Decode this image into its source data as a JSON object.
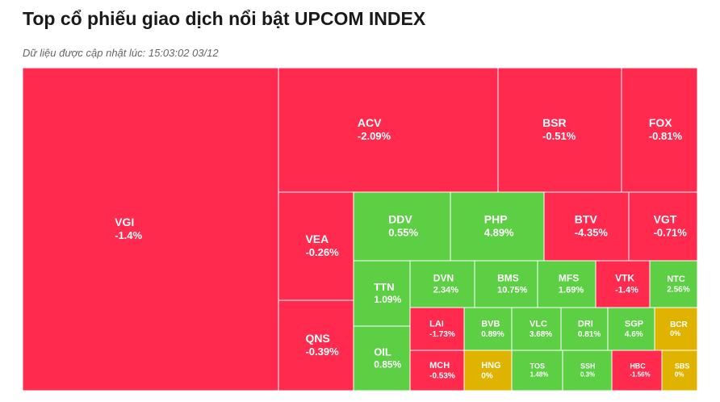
{
  "header": {
    "title": "Top cổ phiếu giao dịch nổi bật UPCOM INDEX",
    "subtitle": "Dữ liệu được cập nhật lúc: 15:03:02 03/12"
  },
  "colors": {
    "down": "#ff2a4e",
    "up": "#5ccf45",
    "flat": "#e0b300",
    "border": "#ffffff"
  },
  "chart_data": {
    "type": "treemap",
    "title": "Top cổ phiếu giao dịch nổi bật UPCOM INDEX",
    "items": [
      {
        "ticker": "VGI",
        "change": "-1.4%",
        "value": -1.4,
        "status": "down"
      },
      {
        "ticker": "ACV",
        "change": "-2.09%",
        "value": -2.09,
        "status": "down"
      },
      {
        "ticker": "BSR",
        "change": "-0.51%",
        "value": -0.51,
        "status": "down"
      },
      {
        "ticker": "FOX",
        "change": "-0.81%",
        "value": -0.81,
        "status": "down"
      },
      {
        "ticker": "VEA",
        "change": "-0.26%",
        "value": -0.26,
        "status": "down"
      },
      {
        "ticker": "QNS",
        "change": "-0.39%",
        "value": -0.39,
        "status": "down"
      },
      {
        "ticker": "DDV",
        "change": "0.55%",
        "value": 0.55,
        "status": "up"
      },
      {
        "ticker": "PHP",
        "change": "4.89%",
        "value": 4.89,
        "status": "up"
      },
      {
        "ticker": "BTV",
        "change": "-4.35%",
        "value": -4.35,
        "status": "down"
      },
      {
        "ticker": "VGT",
        "change": "-0.71%",
        "value": -0.71,
        "status": "down"
      },
      {
        "ticker": "TTN",
        "change": "1.09%",
        "value": 1.09,
        "status": "up"
      },
      {
        "ticker": "DVN",
        "change": "2.34%",
        "value": 2.34,
        "status": "up"
      },
      {
        "ticker": "BMS",
        "change": "10.75%",
        "value": 10.75,
        "status": "up"
      },
      {
        "ticker": "MFS",
        "change": "1.69%",
        "value": 1.69,
        "status": "up"
      },
      {
        "ticker": "VTK",
        "change": "-1.4%",
        "value": -1.4,
        "status": "down"
      },
      {
        "ticker": "NTC",
        "change": "2.56%",
        "value": 2.56,
        "status": "up"
      },
      {
        "ticker": "OIL",
        "change": "0.85%",
        "value": 0.85,
        "status": "up"
      },
      {
        "ticker": "LAI",
        "change": "-1.73%",
        "value": -1.73,
        "status": "down"
      },
      {
        "ticker": "BVB",
        "change": "0.89%",
        "value": 0.89,
        "status": "up"
      },
      {
        "ticker": "VLC",
        "change": "3.68%",
        "value": 3.68,
        "status": "up"
      },
      {
        "ticker": "DRI",
        "change": "0.81%",
        "value": 0.81,
        "status": "up"
      },
      {
        "ticker": "SGP",
        "change": "4.6%",
        "value": 4.6,
        "status": "up"
      },
      {
        "ticker": "BCR",
        "change": "0%",
        "value": 0,
        "status": "flat"
      },
      {
        "ticker": "MCH",
        "change": "-0.53%",
        "value": -0.53,
        "status": "down"
      },
      {
        "ticker": "HNG",
        "change": "0%",
        "value": 0,
        "status": "flat"
      },
      {
        "ticker": "TOS",
        "change": "1.48%",
        "value": 1.48,
        "status": "up"
      },
      {
        "ticker": "SSH",
        "change": "0.3%",
        "value": 0.3,
        "status": "up"
      },
      {
        "ticker": "HBC",
        "change": "-1.56%",
        "value": -1.56,
        "status": "down"
      },
      {
        "ticker": "SBS",
        "change": "0%",
        "value": 0,
        "status": "flat"
      }
    ]
  }
}
